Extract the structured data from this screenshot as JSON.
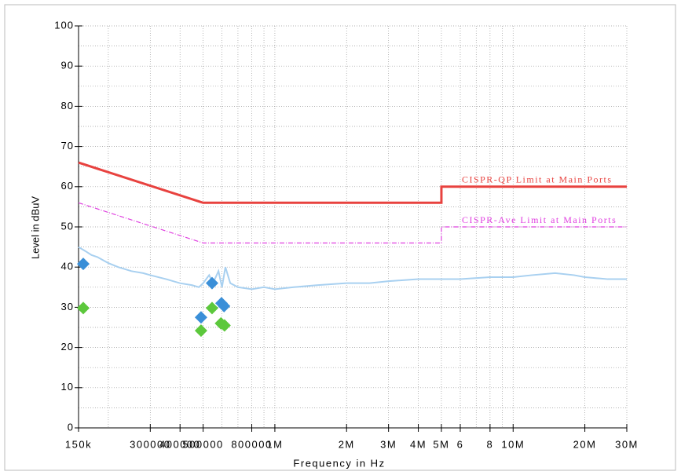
{
  "chart_data": {
    "type": "line",
    "x_label": "Frequency in Hz",
    "y_label": "Level in dBuV",
    "xscale": "log",
    "xlim": [
      150000,
      30000000
    ],
    "ylim": [
      0,
      100
    ],
    "xticks": [
      {
        "value": 150000,
        "label": "150k"
      },
      300000,
      400000,
      500000,
      800000,
      {
        "value": 1000000,
        "label": "1M"
      },
      {
        "value": 2000000,
        "label": "2M"
      },
      {
        "value": 3000000,
        "label": "3M"
      },
      {
        "value": 4000000,
        "label": "4M"
      },
      {
        "value": 5000000,
        "label": "5M"
      },
      {
        "value": 6000000,
        "label": "6"
      },
      {
        "value": 8000000,
        "label": "8"
      },
      {
        "value": 10000000,
        "label": "10M"
      },
      {
        "value": 20000000,
        "label": "20M"
      },
      {
        "value": 30000000,
        "label": "30M"
      }
    ],
    "minor_xticks": [
      200000,
      600000,
      700000,
      900000,
      7000000,
      9000000
    ],
    "yticks": [
      0,
      10,
      20,
      30,
      40,
      50,
      60,
      70,
      80,
      90,
      100
    ],
    "minor_yticks": [
      5,
      15,
      25,
      35,
      45,
      55,
      65,
      75,
      85,
      95
    ],
    "grid": true,
    "series": [
      {
        "name": "CISPR-QP Limit at Main Ports",
        "kind": "line",
        "style": "solid",
        "color": "#e8423f",
        "x": [
          150000,
          500000,
          5000000,
          5000000,
          30000000
        ],
        "values": [
          66,
          56,
          56,
          60,
          60
        ]
      },
      {
        "name": "CISPR-Ave Limit at Main Ports",
        "kind": "line",
        "style": "dashdot",
        "color": "#e040e0",
        "x": [
          150000,
          500000,
          5000000,
          5000000,
          30000000
        ],
        "values": [
          56,
          46,
          46,
          50,
          50
        ]
      },
      {
        "kind": "trace",
        "style": "solid",
        "color": "#a8d0f0",
        "x": [
          150000,
          160000,
          170000,
          180000,
          200000,
          220000,
          250000,
          280000,
          300000,
          350000,
          400000,
          450000,
          480000,
          500000,
          530000,
          550000,
          580000,
          600000,
          620000,
          650000,
          700000,
          800000,
          900000,
          1000000,
          1200000,
          1500000,
          2000000,
          2500000,
          3000000,
          4000000,
          5000000,
          6000000,
          8000000,
          10000000,
          12000000,
          15000000,
          18000000,
          20000000,
          25000000,
          30000000
        ],
        "values": [
          45,
          44,
          43,
          42.5,
          41,
          40,
          39,
          38.5,
          38,
          37,
          36,
          35.5,
          35,
          36,
          38,
          36,
          39,
          35,
          40,
          36,
          35,
          34.5,
          35,
          34.5,
          35,
          35.5,
          36,
          36,
          36.5,
          37,
          37,
          37,
          37.5,
          37.5,
          38,
          38.5,
          38,
          37.5,
          37,
          37
        ]
      },
      {
        "kind": "scatter",
        "color": "#3a8fd8",
        "x": [
          157000,
          490000,
          545000,
          597000,
          612000
        ],
        "values": [
          40.8,
          27.5,
          36,
          31,
          30.3
        ]
      },
      {
        "kind": "scatter",
        "color": "#5cc83c",
        "x": [
          157000,
          490000,
          545000,
          594000,
          615000
        ],
        "values": [
          29.8,
          24.2,
          29.8,
          26,
          25.5
        ]
      }
    ]
  }
}
